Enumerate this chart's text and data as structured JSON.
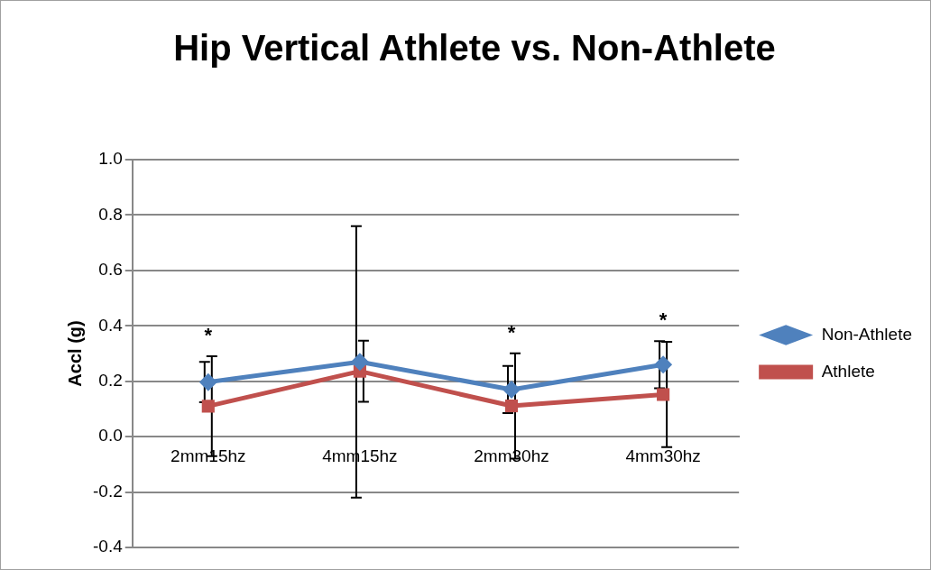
{
  "chart_data": {
    "type": "line",
    "title": "Hip Vertical Athlete vs. Non-Athlete",
    "ylabel": "Accl (g)",
    "categories": [
      "2mm15hz",
      "4mm15hz",
      "2mm30hz",
      "4mm30hz"
    ],
    "series": [
      {
        "name": "Non-Athlete",
        "color": "#4f81bd",
        "marker": "diamond",
        "values": [
          0.197,
          0.27,
          0.17,
          0.26
        ],
        "errors": [
          0.073,
          0.49,
          0.085,
          0.085
        ],
        "value_labels": [
          "*",
          null,
          "*",
          "*"
        ]
      },
      {
        "name": "Athlete",
        "color": "#c0504d",
        "marker": "square",
        "values": [
          0.11,
          0.236,
          0.111,
          0.152
        ],
        "errors": [
          0.18,
          0.11,
          0.19,
          0.19
        ]
      }
    ],
    "ylim": [
      -0.4,
      1.0
    ],
    "yticks": [
      {
        "value": -0.4,
        "label": "-0.4"
      },
      {
        "value": -0.2,
        "label": "-0.2"
      },
      {
        "value": 0,
        "label": "0.0"
      },
      {
        "value": 0.2,
        "label": "0.2"
      },
      {
        "value": 0.4,
        "label": "0.4"
      },
      {
        "value": 0.6,
        "label": "0.6"
      },
      {
        "value": 0.8,
        "label": "0.8"
      },
      {
        "value": 1.0,
        "label": "1.0"
      }
    ],
    "grid": "y",
    "legend": "right",
    "line_style": "solid"
  }
}
